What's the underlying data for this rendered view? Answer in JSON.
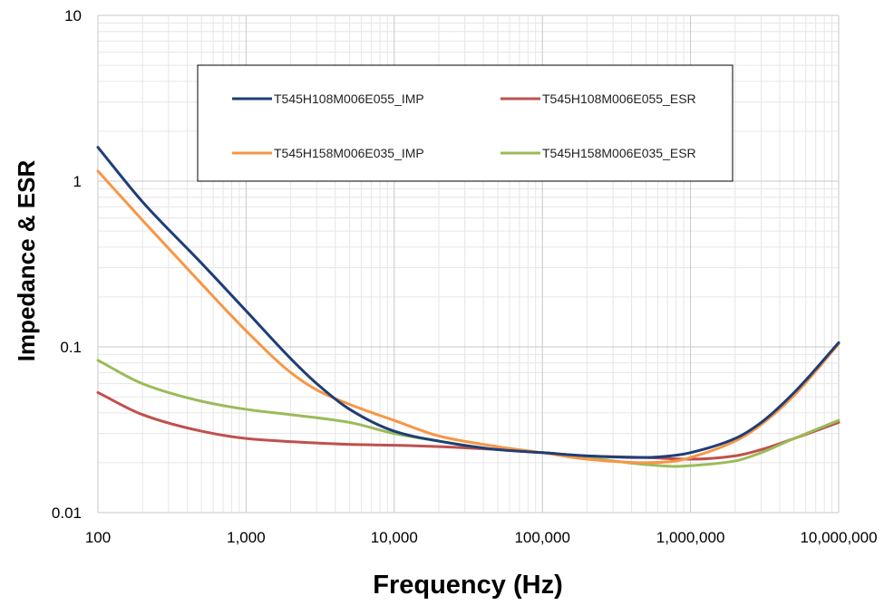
{
  "chart_data": {
    "type": "line",
    "title": "",
    "xlabel": "Frequency (Hz)",
    "ylabel": "Impedance & ESR",
    "x_scale": "log",
    "y_scale": "log",
    "xlim": [
      100,
      10000000
    ],
    "ylim": [
      0.01,
      10
    ],
    "x_ticks": [
      100,
      1000,
      10000,
      100000,
      1000000,
      10000000
    ],
    "x_tick_labels": [
      "100",
      "1,000",
      "10,000",
      "100,000",
      "1,000,000",
      "10,000,000"
    ],
    "y_ticks": [
      0.01,
      0.1,
      1,
      10
    ],
    "y_tick_labels": [
      "0.01",
      "0.1",
      "1",
      "10"
    ],
    "grid": true,
    "legend_position": "top-center",
    "series": [
      {
        "name": "T545H108M006E055_IMP",
        "color": "#1f3e77",
        "x": [
          100,
          200,
          500,
          1000,
          2000,
          3000,
          5000,
          10000,
          20000,
          50000,
          100000,
          200000,
          500000,
          800000,
          1000000,
          2000000,
          3000000,
          5000000,
          10000000
        ],
        "y": [
          1.6,
          0.75,
          0.32,
          0.165,
          0.085,
          0.06,
          0.042,
          0.031,
          0.027,
          0.024,
          0.023,
          0.022,
          0.0215,
          0.0222,
          0.023,
          0.028,
          0.035,
          0.053,
          0.106
        ]
      },
      {
        "name": "T545H108M006E055_ESR",
        "color": "#c0504d",
        "x": [
          100,
          200,
          500,
          1000,
          2000,
          5000,
          10000,
          20000,
          50000,
          100000,
          200000,
          500000,
          1000000,
          2000000,
          3000000,
          5000000,
          10000000
        ],
        "y": [
          0.053,
          0.039,
          0.031,
          0.028,
          0.0268,
          0.0258,
          0.0255,
          0.025,
          0.024,
          0.023,
          0.022,
          0.0215,
          0.021,
          0.022,
          0.024,
          0.028,
          0.035
        ]
      },
      {
        "name": "T545H158M006E035_IMP",
        "color": "#f79646",
        "x": [
          100,
          200,
          500,
          1000,
          2000,
          3000,
          5000,
          10000,
          20000,
          50000,
          100000,
          200000,
          500000,
          800000,
          1000000,
          2000000,
          3000000,
          5000000,
          10000000
        ],
        "y": [
          1.15,
          0.58,
          0.24,
          0.125,
          0.07,
          0.055,
          0.045,
          0.036,
          0.029,
          0.025,
          0.023,
          0.021,
          0.02,
          0.0205,
          0.0215,
          0.027,
          0.034,
          0.051,
          0.104
        ]
      },
      {
        "name": "T545H158M006E035_ESR",
        "color": "#9bbb59",
        "x": [
          100,
          200,
          500,
          1000,
          2000,
          5000,
          10000,
          20000,
          50000,
          100000,
          200000,
          500000,
          800000,
          1000000,
          2000000,
          3000000,
          5000000,
          10000000
        ],
        "y": [
          0.083,
          0.06,
          0.047,
          0.042,
          0.039,
          0.035,
          0.03,
          0.027,
          0.024,
          0.023,
          0.0215,
          0.0195,
          0.019,
          0.0192,
          0.0205,
          0.023,
          0.028,
          0.036
        ]
      }
    ]
  }
}
